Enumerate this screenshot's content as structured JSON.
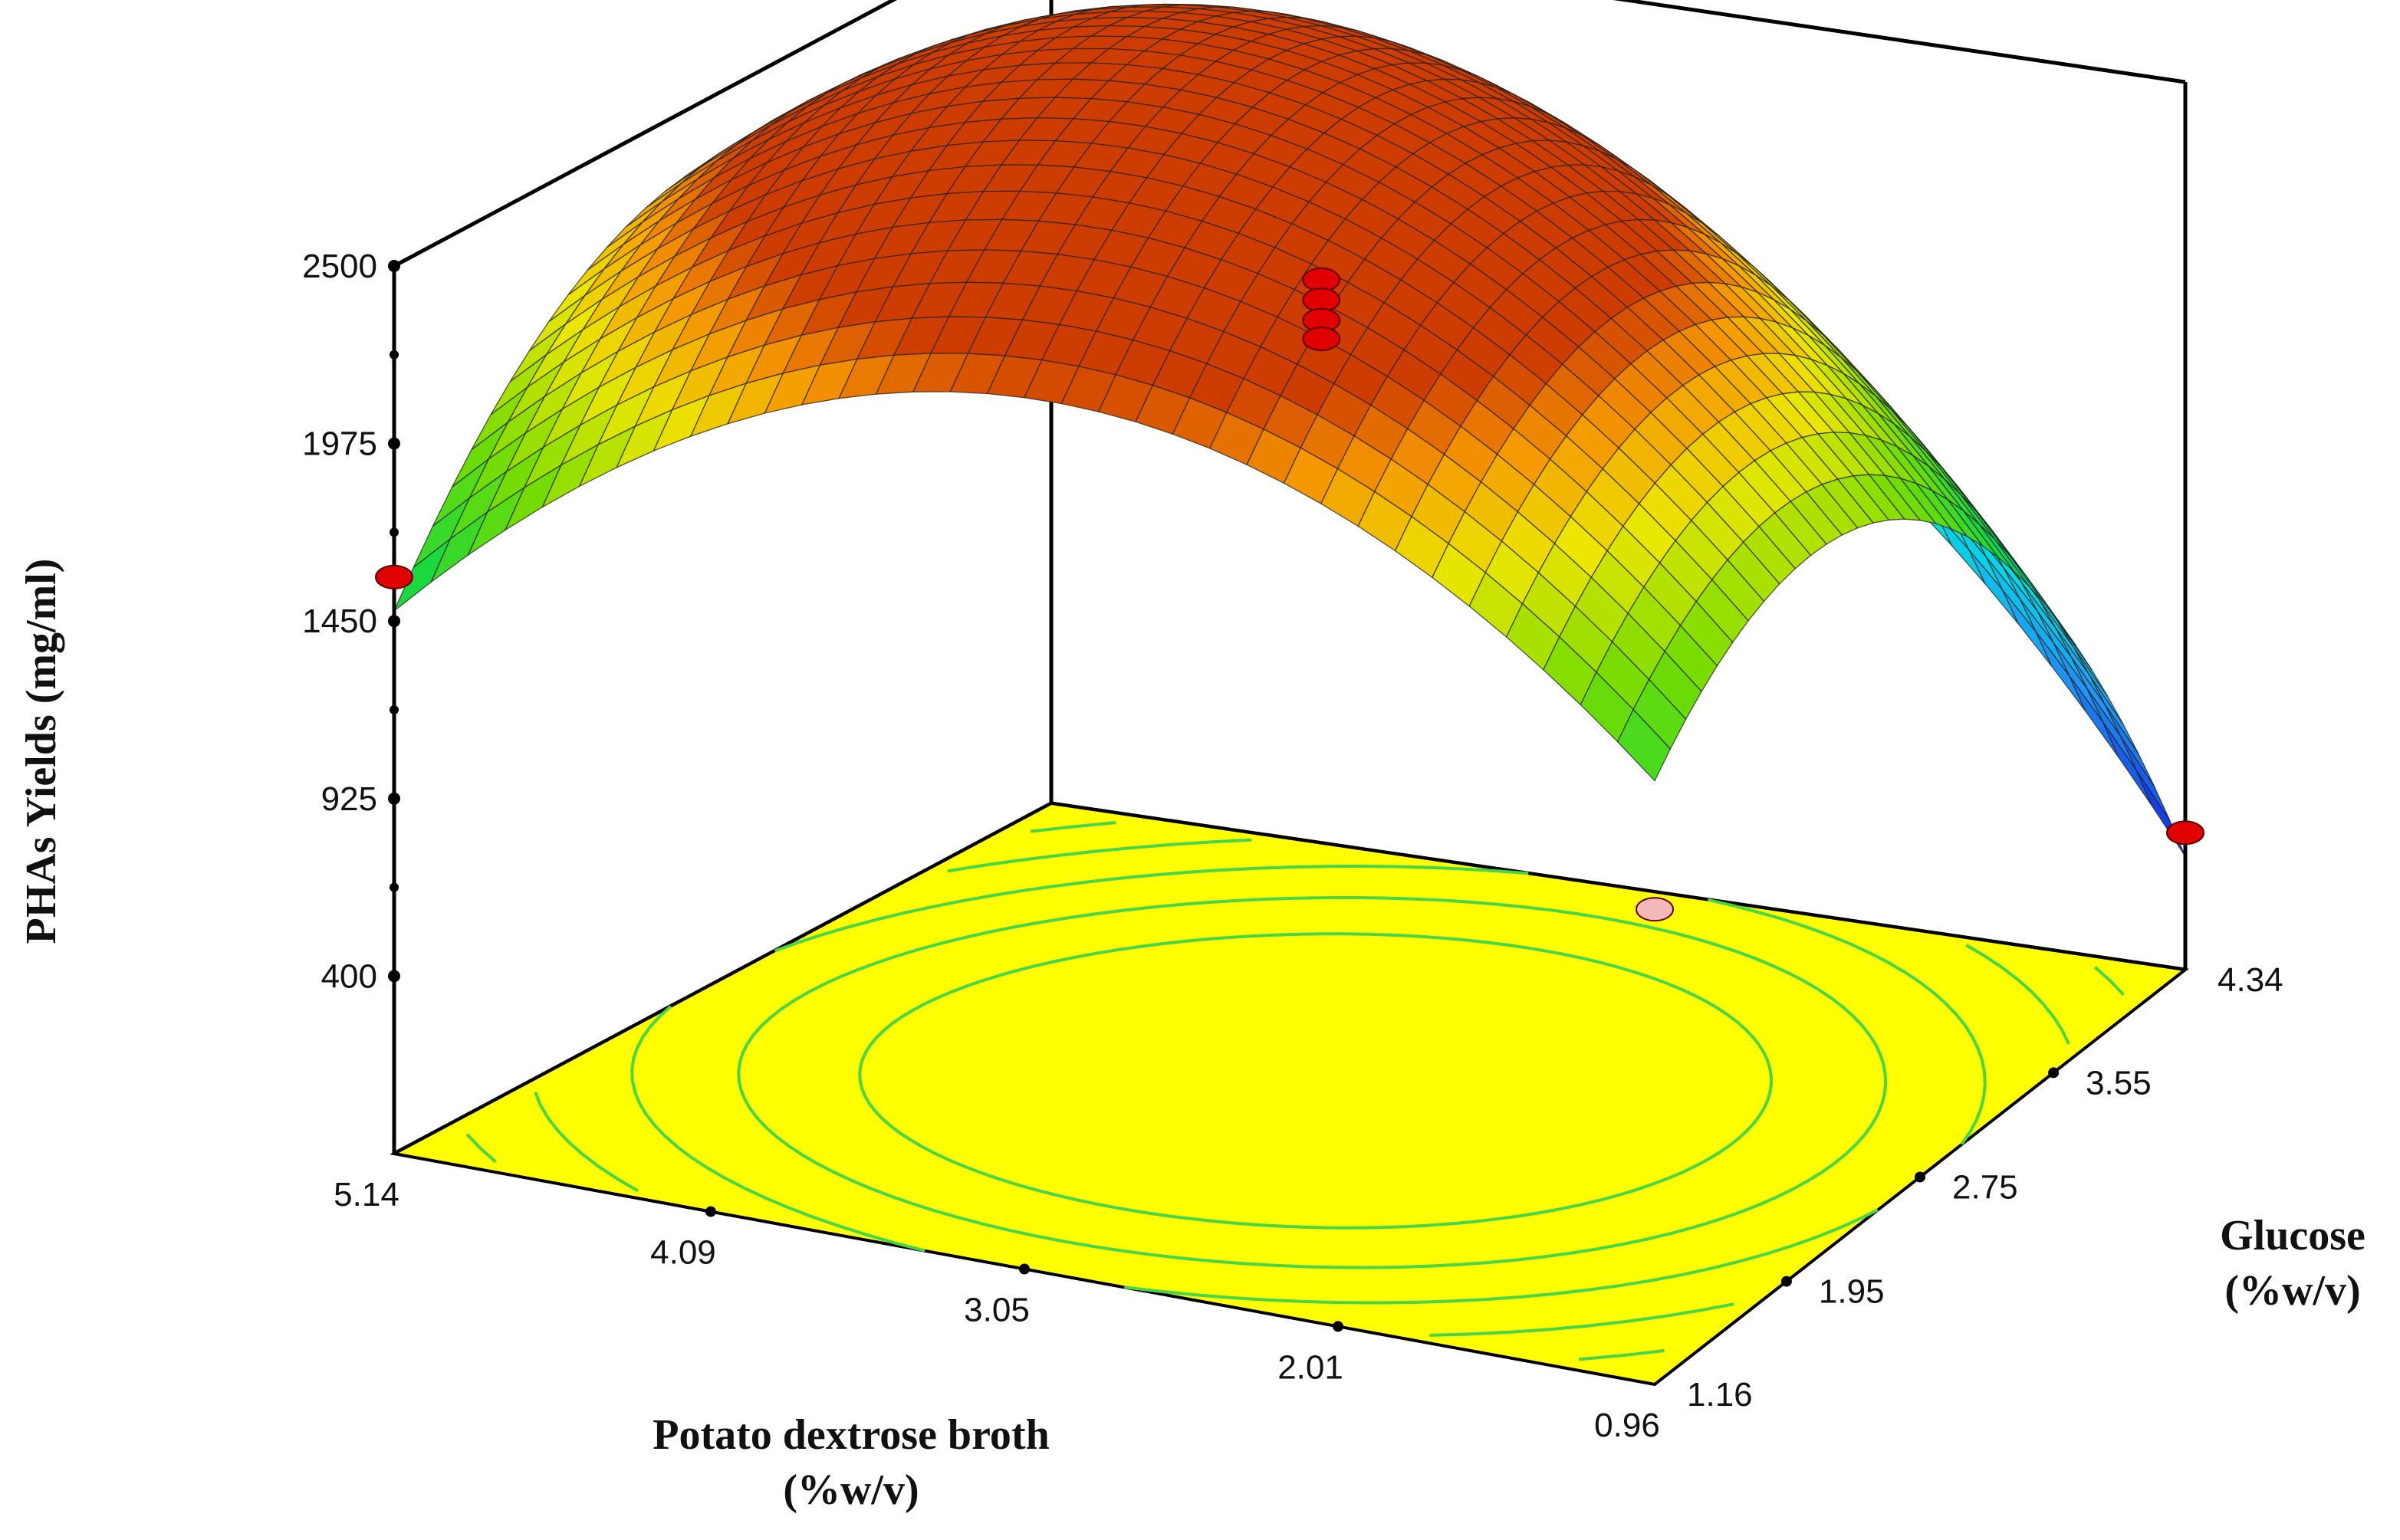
{
  "chart_data": {
    "type": "surface",
    "xlabel_line1": "Potato dextrose broth",
    "xlabel_line2": "(%w/v)",
    "ylabel_line1": "Glucose",
    "ylabel_line2": "(%w/v)",
    "zlabel": "PHAs Yields (mg/ml)",
    "x_ticks": [
      "5.14",
      "4.09",
      "3.05",
      "2.01",
      "0.96"
    ],
    "y_ticks": [
      "1.16",
      "1.95",
      "2.75",
      "3.55",
      "4.34"
    ],
    "z_ticks": [
      "400",
      "925",
      "1450",
      "1975",
      "2500"
    ],
    "xlim": [
      0.96,
      5.14
    ],
    "ylim": [
      1.16,
      4.34
    ],
    "zlim": [
      -125,
      2500
    ],
    "surface": {
      "x_center": 3.05,
      "y_center": 2.75,
      "max": 2520,
      "at_x_0.96_y_1.16": 1660,
      "at_x_5.14_y_1.16": 1480,
      "at_x_5.14_y_4.34": 1380,
      "at_x_0.96_y_4.34": 210
    },
    "design_points": [
      {
        "x": 3.05,
        "y": 2.75,
        "z": 2235,
        "color": "#e00000"
      },
      {
        "x": 3.05,
        "y": 2.75,
        "z": 2175,
        "color": "#e00000"
      },
      {
        "x": 3.05,
        "y": 2.75,
        "z": 2115,
        "color": "#e00000"
      },
      {
        "x": 3.05,
        "y": 2.75,
        "z": 2060,
        "color": "#e00000"
      },
      {
        "x": 5.14,
        "y": 1.16,
        "z": 1580,
        "color": "#e00000"
      },
      {
        "x": 0.96,
        "y": 4.34,
        "z": 280,
        "color": "#e00000"
      },
      {
        "x": 0.96,
        "y": 1.16,
        "z": 1280,
        "color": "#f4b8b8"
      }
    ],
    "floor_color": "#ffff00",
    "contour_color": "#46d64a"
  }
}
